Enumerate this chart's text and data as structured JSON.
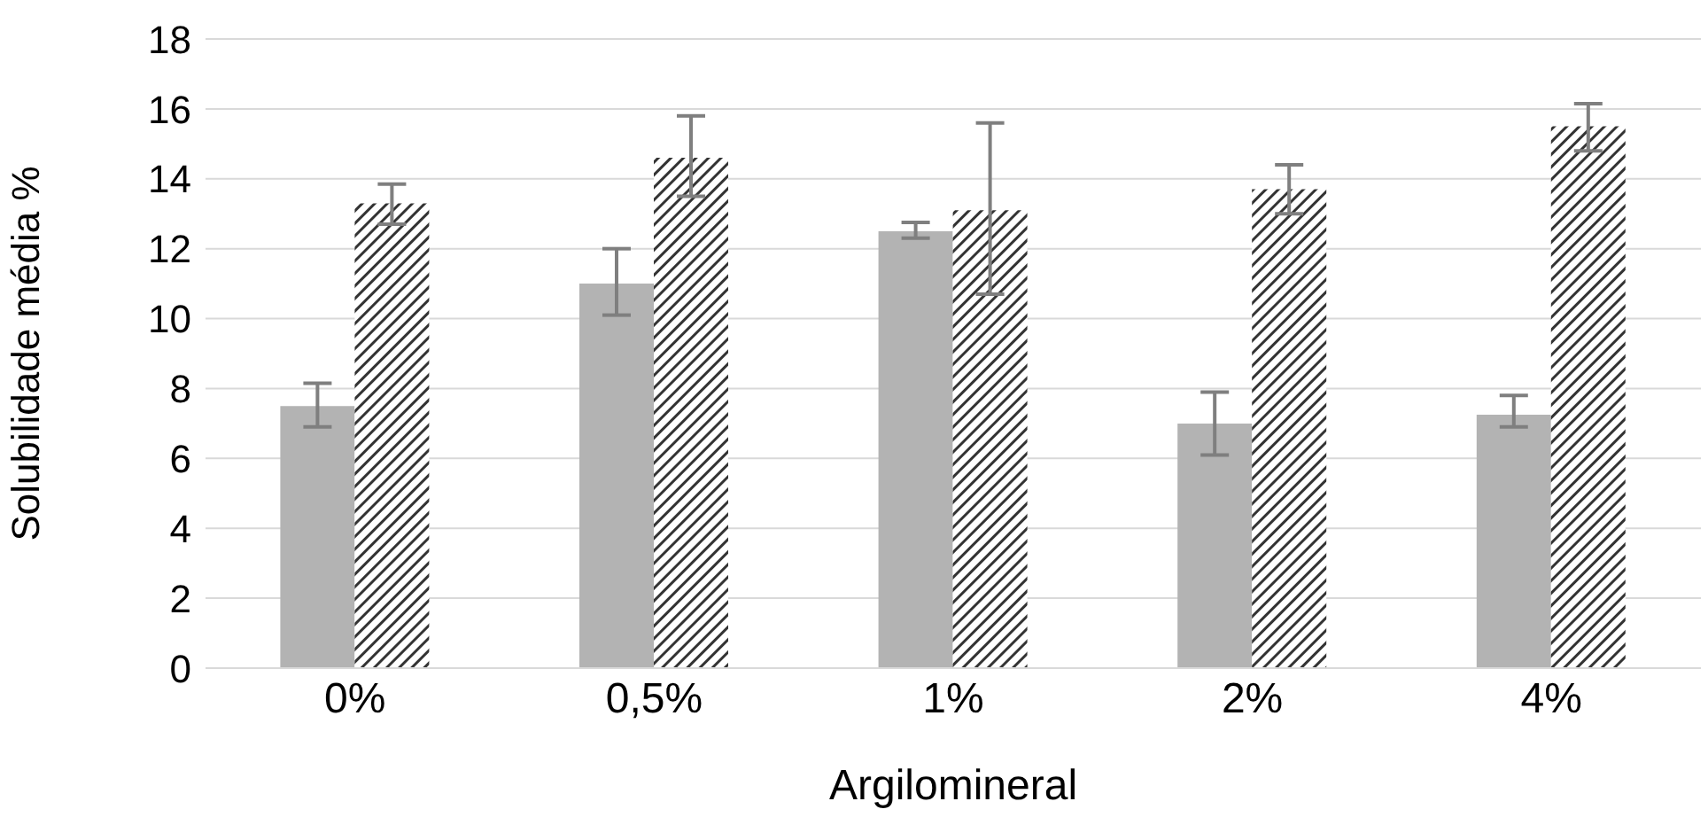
{
  "chart_data": {
    "type": "bar",
    "xlabel": "Argilomineral",
    "ylabel": "Solubilidade  média %",
    "categories": [
      "0%",
      "0,5%",
      "1%",
      "2%",
      "4%"
    ],
    "series": [
      {
        "color": "#b3b3b3",
        "values": [
          7.5,
          11.0,
          12.5,
          7.0,
          7.25
        ],
        "errors": [
          [
            6.9,
            8.15
          ],
          [
            10.1,
            12.0
          ],
          [
            12.3,
            12.75
          ],
          [
            6.1,
            7.9
          ],
          [
            6.9,
            7.8
          ]
        ]
      },
      {
        "color": "#333333",
        "values": [
          13.3,
          14.6,
          13.1,
          13.7,
          15.5
        ],
        "errors": [
          [
            12.7,
            13.85
          ],
          [
            13.5,
            15.8
          ],
          [
            10.7,
            15.6
          ],
          [
            13.0,
            14.4
          ],
          [
            14.8,
            16.15
          ]
        ]
      }
    ],
    "ylim": [
      0,
      18
    ],
    "yticks": [
      0,
      2,
      4,
      6,
      8,
      10,
      12,
      14,
      16,
      18
    ],
    "grid": "y",
    "legend": false
  }
}
